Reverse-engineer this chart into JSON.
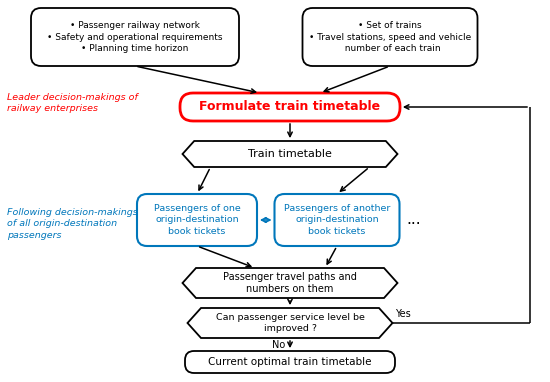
{
  "bg_color": "#ffffff",
  "box1_text": "• Passenger railway network\n• Safety and operational requirements\n• Planning time horizon",
  "box2_text": "• Set of trains\n• Travel stations, speed and vehicle\n  number of each train",
  "formulate_text": "Formulate train timetable",
  "timetable_text": "Train timetable",
  "pax1_text": "Passengers of one\norigin-destination\nbook tickets",
  "pax2_text": "Passengers of another\norigin-destination\nbook tickets",
  "dots_text": "...",
  "paths_text": "Passenger travel paths and\nnumbers on them",
  "improve_text": "Can passenger service level be\nimproved ?",
  "optimal_text": "Current optimal train timetable",
  "leader_text": "Leader decision-makings of\nrailway enterprises",
  "following_text": "Following decision-makings\nof all origin-destination\npassengers",
  "yes_text": "Yes",
  "no_text": "No↓",
  "red": "#ff0000",
  "blue": "#0077bb",
  "black": "#000000",
  "white": "#ffffff",
  "fig_w": 5.5,
  "fig_h": 3.82,
  "dpi": 100
}
